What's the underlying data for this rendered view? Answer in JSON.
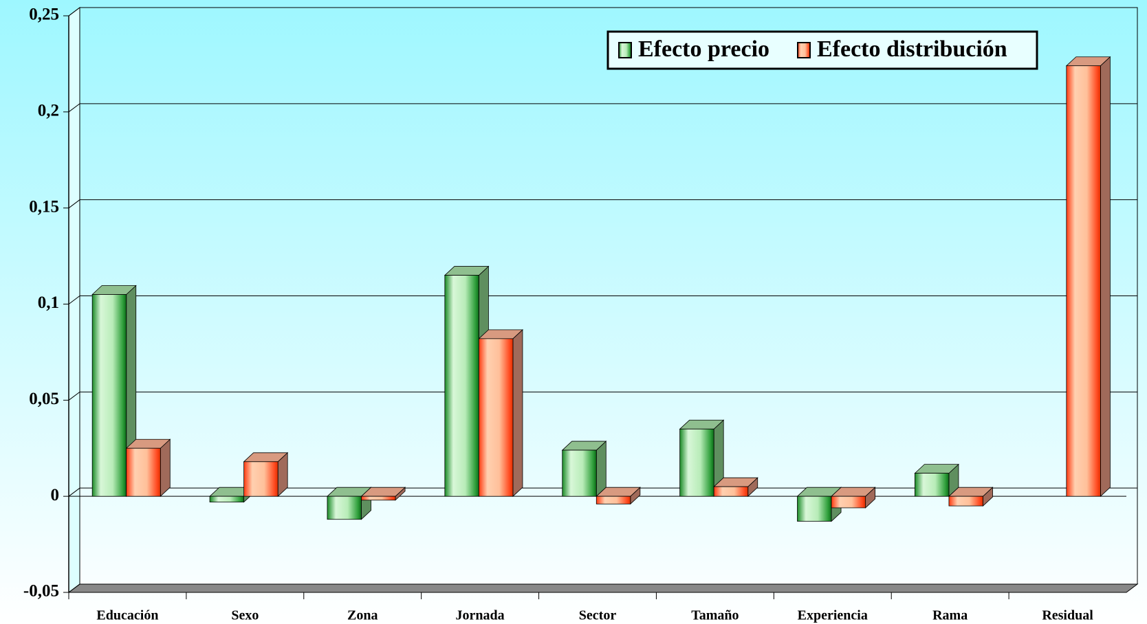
{
  "chart_data": {
    "type": "bar3d",
    "categories": [
      "Educación",
      "Sexo",
      "Zona",
      "Jornada",
      "Sector",
      "Tamaño",
      "Experiencia",
      "Rama",
      "Residual"
    ],
    "series": [
      {
        "name": "Efecto precio",
        "color": "#2e9e3a",
        "values": [
          0.105,
          -0.003,
          -0.012,
          0.115,
          0.024,
          0.035,
          -0.013,
          0.012,
          null
        ]
      },
      {
        "name": "Efecto distribución",
        "color": "#ff6a2a",
        "values": [
          0.025,
          0.018,
          -0.002,
          0.082,
          -0.004,
          0.005,
          -0.006,
          -0.005,
          0.224
        ]
      }
    ],
    "ylim": [
      -0.05,
      0.25
    ],
    "yticks": [
      {
        "value": -0.05,
        "label": "-0,05"
      },
      0,
      {
        "value": 0.05,
        "label": "0,05"
      },
      {
        "value": 0.1,
        "label": "0,1"
      },
      {
        "value": 0.15,
        "label": "0,15"
      },
      {
        "value": 0.2,
        "label": "0,2"
      },
      {
        "value": 0.25,
        "label": "0,25"
      }
    ],
    "grid": true,
    "legend": "top-right"
  }
}
